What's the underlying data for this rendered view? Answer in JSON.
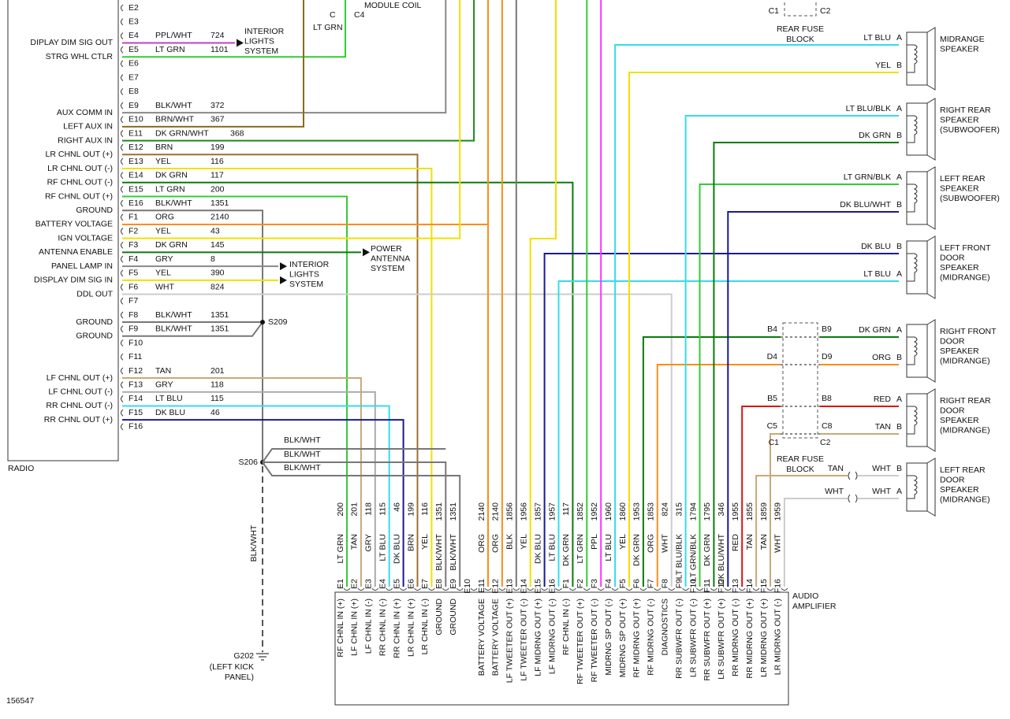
{
  "figure_id": "156547",
  "top": {
    "module": "MODULE COIL",
    "pin": "C",
    "connector": "C4",
    "wire": "LT GRN"
  },
  "radio": {
    "label": "RADIO",
    "pins": [
      {
        "pin": "E2"
      },
      {
        "pin": "E3"
      },
      {
        "pin": "E4",
        "signal": "DIPLAY DIM SIG OUT",
        "color": "PPL/WHT",
        "circuit": "724"
      },
      {
        "pin": "E5",
        "signal": "STRG WHL CTLR",
        "color": "LT GRN",
        "circuit": "1101"
      },
      {
        "pin": "E6"
      },
      {
        "pin": "E7"
      },
      {
        "pin": "E8"
      },
      {
        "pin": "E9",
        "signal": "AUX COMM IN",
        "color": "BLK/WHT",
        "circuit": "372"
      },
      {
        "pin": "E10",
        "signal": "LEFT AUX IN",
        "color": "BRN/WHT",
        "circuit": "367"
      },
      {
        "pin": "E11",
        "signal": "RIGHT AUX IN",
        "color": "DK GRN/WHT",
        "circuit": "368"
      },
      {
        "pin": "E12",
        "signal": "LR CHNL OUT (+)",
        "color": "BRN",
        "circuit": "199"
      },
      {
        "pin": "E13",
        "signal": "LR CHNL OUT (-)",
        "color": "YEL",
        "circuit": "116"
      },
      {
        "pin": "E14",
        "signal": "RF CHNL OUT (-)",
        "color": "DK GRN",
        "circuit": "117"
      },
      {
        "pin": "E15",
        "signal": "RF CHNL OUT (+)",
        "color": "LT GRN",
        "circuit": "200"
      },
      {
        "pin": "E16",
        "signal": "GROUND",
        "color": "BLK/WHT",
        "circuit": "1351"
      },
      {
        "pin": "F1",
        "signal": "BATTERY VOLTAGE",
        "color": "ORG",
        "circuit": "2140"
      },
      {
        "pin": "F2",
        "signal": "IGN VOLTAGE",
        "color": "YEL",
        "circuit": "43"
      },
      {
        "pin": "F3",
        "signal": "ANTENNA ENABLE",
        "color": "DK GRN",
        "circuit": "145"
      },
      {
        "pin": "F4",
        "signal": "PANEL LAMP IN",
        "color": "GRY",
        "circuit": "8"
      },
      {
        "pin": "F5",
        "signal": "DISPLAY DIM SIG IN",
        "color": "YEL",
        "circuit": "390"
      },
      {
        "pin": "F6",
        "signal": "DDL OUT",
        "color": "WHT",
        "circuit": "824"
      },
      {
        "pin": "F7"
      },
      {
        "pin": "F8",
        "signal": "GROUND",
        "color": "BLK/WHT",
        "circuit": "1351"
      },
      {
        "pin": "F9",
        "signal": "GROUND",
        "color": "BLK/WHT",
        "circuit": "1351"
      },
      {
        "pin": "F10"
      },
      {
        "pin": "F11"
      },
      {
        "pin": "F12",
        "signal": "LF CHNL OUT (+)",
        "color": "TAN",
        "circuit": "201"
      },
      {
        "pin": "F13",
        "signal": "LF CHNL OUT (-)",
        "color": "GRY",
        "circuit": "118"
      },
      {
        "pin": "F14",
        "signal": "RR CHNL OUT (-)",
        "color": "LT BLU",
        "circuit": "115"
      },
      {
        "pin": "F15",
        "signal": "RR CHNL OUT (+)",
        "color": "DK BLU",
        "circuit": "46"
      },
      {
        "pin": "F16"
      }
    ]
  },
  "callouts": [
    {
      "lines": [
        "INTERIOR",
        "LIGHTS",
        "SYSTEM"
      ]
    },
    {
      "lines": [
        "INTERIOR",
        "LIGHTS",
        "SYSTEM"
      ]
    },
    {
      "lines": [
        "POWER",
        "ANTENNA",
        "SYSTEM"
      ]
    }
  ],
  "splices": {
    "s209": "S209",
    "s206": "S206",
    "s206_wires": [
      "BLK/WHT",
      "BLK/WHT",
      "BLK/WHT"
    ],
    "ground_wire": "BLK/WHT"
  },
  "ground": {
    "label": "G202",
    "location": [
      "(LEFT KICK",
      "PANEL)"
    ]
  },
  "fuse_blocks": [
    {
      "lines": [
        "REAR FUSE",
        "BLOCK"
      ],
      "cavities": [
        "C1",
        "C2"
      ]
    },
    {
      "lines": [
        "REAR FUSE",
        "BLOCK"
      ],
      "cavities": [
        "C1",
        "C2"
      ],
      "pins": [
        [
          "B4",
          "B9"
        ],
        [
          "D4",
          "D9"
        ],
        [
          "B5",
          "B8"
        ],
        [
          "C5",
          "C8"
        ]
      ]
    }
  ],
  "speakers": [
    {
      "name": [
        "MIDRANGE",
        "SPEAKER"
      ],
      "pins": [
        {
          "pin": "A",
          "color": "LT BLU"
        },
        {
          "pin": "B",
          "color": "YEL"
        }
      ]
    },
    {
      "name": [
        "RIGHT REAR",
        "SPEAKER",
        "(SUBWOOFER)"
      ],
      "pins": [
        {
          "pin": "A",
          "color": "LT BLU/BLK"
        },
        {
          "pin": "B",
          "color": "DK GRN"
        }
      ]
    },
    {
      "name": [
        "LEFT REAR",
        "SPEAKER",
        "(SUBWOOFER)"
      ],
      "pins": [
        {
          "pin": "A",
          "color": "LT GRN/BLK"
        },
        {
          "pin": "B",
          "color": "DK BLU/WHT"
        }
      ]
    },
    {
      "name": [
        "LEFT FRONT",
        "DOOR",
        "SPEAKER",
        "(MIDRANGE)"
      ],
      "pins": [
        {
          "pin": "B",
          "color": "DK BLU"
        },
        {
          "pin": "A",
          "color": "LT BLU"
        }
      ]
    },
    {
      "name": [
        "RIGHT FRONT",
        "DOOR",
        "SPEAKER",
        "(MIDRANGE)"
      ],
      "pins": [
        {
          "pin": "A",
          "color": "DK GRN"
        },
        {
          "pin": "B",
          "color": "ORG"
        }
      ]
    },
    {
      "name": [
        "RIGHT REAR",
        "DOOR",
        "SPEAKER",
        "(MIDRANGE)"
      ],
      "pins": [
        {
          "pin": "A",
          "color": "RED"
        },
        {
          "pin": "B",
          "color": "TAN"
        }
      ]
    },
    {
      "name": [
        "LEFT REAR",
        "DOOR",
        "SPEAKER",
        "(MIDRANGE)"
      ],
      "pins": [
        {
          "pin": "B",
          "color": "WHT",
          "feed": "TAN"
        },
        {
          "pin": "A",
          "color": "WHT",
          "feed": "WHT"
        }
      ]
    }
  ],
  "amplifier": {
    "label": [
      "AUDIO",
      "AMPLIFIER"
    ],
    "pins": [
      {
        "pin": "E1",
        "function": "RF CHNL IN (+)",
        "color": "LT GRN",
        "circuit": "200"
      },
      {
        "pin": "E2",
        "function": "LF CHNL IN (+)",
        "color": "TAN",
        "circuit": "201"
      },
      {
        "pin": "E3",
        "function": "LF CHNL IN (-)",
        "color": "GRY",
        "circuit": "118"
      },
      {
        "pin": "E4",
        "function": "RR CHNL IN (-)",
        "color": "LT BLU",
        "circuit": "115"
      },
      {
        "pin": "E5",
        "function": "RR CHNL IN (+)",
        "color": "DK BLU",
        "circuit": "46"
      },
      {
        "pin": "E6",
        "function": "LR CHNL IN (+)",
        "color": "BRN",
        "circuit": "199"
      },
      {
        "pin": "E7",
        "function": "LR CHNL IN (-)",
        "color": "YEL",
        "circuit": "116"
      },
      {
        "pin": "E8",
        "function": "GROUND",
        "color": "BLK/WHT",
        "circuit": "1351"
      },
      {
        "pin": "E9",
        "function": "GROUND",
        "color": "BLK/WHT",
        "circuit": "1351"
      },
      {
        "pin": "E10"
      },
      {
        "pin": "E11",
        "function": "BATTERY VOLTAGE",
        "color": "ORG",
        "circuit": "2140"
      },
      {
        "pin": "E12",
        "function": "BATTERY VOLTAGE",
        "color": "ORG",
        "circuit": "2140"
      },
      {
        "pin": "E13",
        "function": "LF TWEETER OUT (+)",
        "color": "BLK",
        "circuit": "1856"
      },
      {
        "pin": "E14",
        "function": "LF TWEETER OUT (-)",
        "color": "YEL",
        "circuit": "1956"
      },
      {
        "pin": "E15",
        "function": "LF MIDRNG OUT (+)",
        "color": "DK BLU",
        "circuit": "1857"
      },
      {
        "pin": "E16",
        "function": "LF MIDRNG OUT (-)",
        "color": "LT BLU",
        "circuit": "1957"
      },
      {
        "pin": "F1",
        "function": "RF CHNL IN (-)",
        "color": "DK GRN",
        "circuit": "117"
      },
      {
        "pin": "F2",
        "function": "RF TWEETER OUT (+)",
        "color": "LT GRN",
        "circuit": "1852"
      },
      {
        "pin": "F3",
        "function": "RF TWEETER OUT (-)",
        "color": "PPL",
        "circuit": "1952"
      },
      {
        "pin": "F4",
        "function": "MIDRNG SP OUT (-)",
        "color": "LT BLU",
        "circuit": "1960"
      },
      {
        "pin": "F5",
        "function": "MIDRNG SP OUT (+)",
        "color": "YEL",
        "circuit": "1860"
      },
      {
        "pin": "F6",
        "function": "RF MIDRNG OUT (+)",
        "color": "DK GRN",
        "circuit": "1953"
      },
      {
        "pin": "F7",
        "function": "RF MIDRNG OUT (-)",
        "color": "ORG",
        "circuit": "1853"
      },
      {
        "pin": "F8",
        "function": "DIAGNOSTICS",
        "color": "WHT",
        "circuit": "824"
      },
      {
        "pin": "F9",
        "function": "RR SUBWFR OUT (-)",
        "color": "LT BLU/BLK",
        "circuit": "315"
      },
      {
        "pin": "F10",
        "function": "LR SUBWFR OUT (-)",
        "color": "LT GRN/BLK",
        "circuit": "1794"
      },
      {
        "pin": "F11",
        "function": "RR SUBWFR OUT (+)",
        "color": "DK GRN",
        "circuit": "1795"
      },
      {
        "pin": "F12",
        "function": "LR SUBWFR OUT (+)",
        "color": "DK BLU/WHT",
        "circuit": "346"
      },
      {
        "pin": "F13",
        "function": "RR MIDRNG OUT (-)",
        "color": "RED",
        "circuit": "1955"
      },
      {
        "pin": "F14",
        "function": "RR MIDRNG OUT (+)",
        "color": "TAN",
        "circuit": "1855"
      },
      {
        "pin": "F15",
        "function": "LR MIDRNG OUT (+)",
        "color": "TAN",
        "circuit": "1859"
      },
      {
        "pin": "F16",
        "function": "LR MIDRNG OUT (-)",
        "color": "WHT",
        "circuit": "1959"
      }
    ]
  }
}
